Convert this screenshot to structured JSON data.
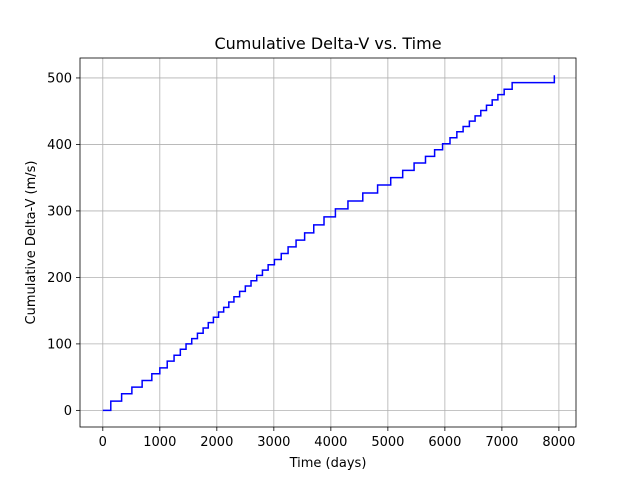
{
  "chart_data": {
    "type": "line",
    "title": "Cumulative Delta-V vs. Time",
    "xlabel": "Time (days)",
    "ylabel": "Cumulative Delta-V (m/s)",
    "xlim": [
      -400,
      8300
    ],
    "ylim": [
      -25,
      530
    ],
    "xticks": [
      0,
      1000,
      2000,
      3000,
      4000,
      5000,
      6000,
      7000,
      8000
    ],
    "yticks": [
      0,
      100,
      200,
      300,
      400,
      500
    ],
    "grid": true,
    "series": [
      {
        "color": "#0000ff",
        "step": "post",
        "x": [
          0,
          140,
          330,
          510,
          690,
          860,
          1000,
          1130,
          1250,
          1360,
          1460,
          1560,
          1660,
          1760,
          1850,
          1940,
          2030,
          2120,
          2210,
          2300,
          2400,
          2500,
          2600,
          2700,
          2800,
          2900,
          3010,
          3130,
          3250,
          3390,
          3540,
          3700,
          3880,
          4080,
          4300,
          4560,
          4820,
          5050,
          5260,
          5460,
          5660,
          5820,
          5960,
          6090,
          6210,
          6320,
          6430,
          6530,
          6630,
          6730,
          6830,
          6930,
          7040,
          7180,
          7920
        ],
        "y": [
          0,
          14,
          25,
          35,
          45,
          55,
          64,
          74,
          83,
          92,
          100,
          108,
          116,
          124,
          132,
          140,
          148,
          155,
          163,
          171,
          179,
          187,
          195,
          203,
          211,
          219,
          227,
          236,
          246,
          256,
          267,
          279,
          291,
          303,
          315,
          327,
          339,
          350,
          361,
          372,
          382,
          392,
          401,
          410,
          419,
          427,
          435,
          443,
          451,
          459,
          467,
          475,
          483,
          493,
          504
        ]
      }
    ]
  }
}
